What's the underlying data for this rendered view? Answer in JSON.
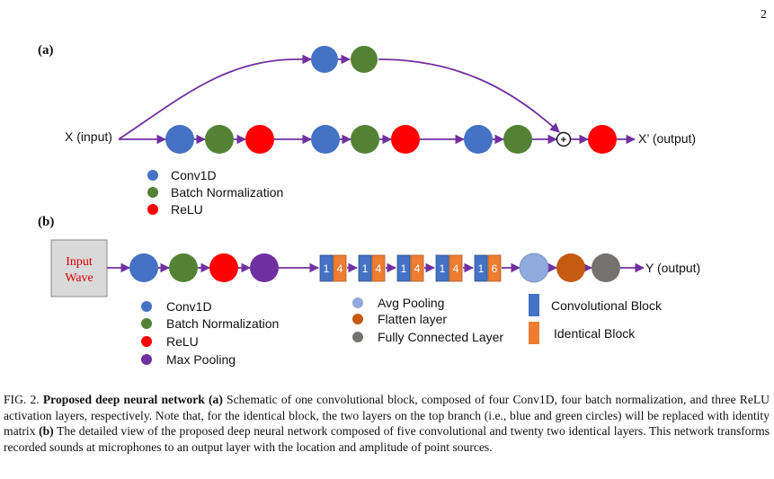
{
  "page_number": "2",
  "panel_a": {
    "label": "(a)",
    "input_label": "X (input)",
    "output_label": "X’ (output)",
    "sum_symbol": "+",
    "legend": [
      {
        "label": "Conv1D",
        "color": "#4472c4"
      },
      {
        "label": "Batch Normalization",
        "color": "#548235"
      },
      {
        "label": "ReLU",
        "color": "#ff0000"
      }
    ]
  },
  "panel_b": {
    "label": "(b)",
    "input_box_line1": "Input",
    "input_box_line2": "Wave",
    "output_label": "Y (output)",
    "block_groups": [
      {
        "conv": "1",
        "ident": "4"
      },
      {
        "conv": "1",
        "ident": "4"
      },
      {
        "conv": "1",
        "ident": "4"
      },
      {
        "conv": "1",
        "ident": "4"
      },
      {
        "conv": "1",
        "ident": "6"
      }
    ],
    "legend_left": [
      {
        "label": "Conv1D",
        "color": "#4472c4"
      },
      {
        "label": "Batch Normalization",
        "color": "#548235"
      },
      {
        "label": "ReLU",
        "color": "#ff0000"
      },
      {
        "label": "Max Pooling",
        "color": "#7030a0"
      }
    ],
    "legend_mid": [
      {
        "label": "Avg Pooling",
        "color": "#8faadc"
      },
      {
        "label": "Flatten layer",
        "color": "#c55a11"
      },
      {
        "label": "Fully Connected Layer",
        "color": "#767171"
      }
    ],
    "legend_right": [
      {
        "label": "Convolutional Block",
        "color": "#4472c4"
      },
      {
        "label": "Identical Block",
        "color": "#ed7d31"
      }
    ]
  },
  "colors": {
    "conv": "#4472c4",
    "bn": "#548235",
    "relu": "#ff0000",
    "maxpool": "#7030a0",
    "avgpool": "#8faadc",
    "flatten": "#c55a11",
    "fc": "#767171",
    "arrow": "#7030a0",
    "input_box_fill": "#d9d9d9",
    "input_box_text": "#e00000"
  },
  "caption": {
    "fig_label": "FIG. 2.",
    "title": "Proposed deep neural network",
    "part_a": "(a)",
    "text_a": "Schematic of one convolutional block, composed of four Conv1D, four batch normalization, and three ReLU activation layers, respectively. Note that, for the identical block, the two layers on the top branch (i.e., blue and green circles) will be replaced with identity matrix",
    "part_b": "(b)",
    "text_b": "The detailed view of the proposed deep neural network composed of five convolutional and twenty two identical layers. This network transforms recorded sounds at microphones to an output layer with the location and amplitude of point sources."
  }
}
